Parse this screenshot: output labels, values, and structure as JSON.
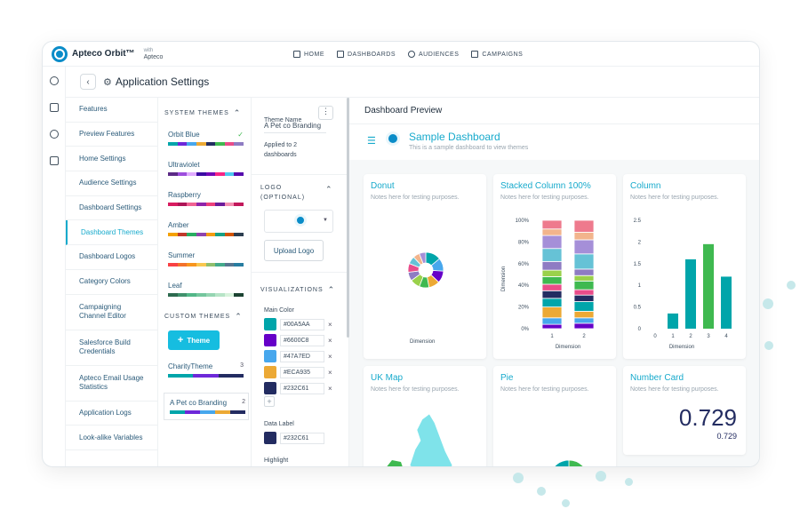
{
  "app": {
    "name": "Apteco Orbit™",
    "with_label": "with",
    "with_brand": "Apteco"
  },
  "nav": [
    {
      "label": "HOME",
      "icon": "home-icon"
    },
    {
      "label": "DASHBOARDS",
      "icon": "dashboards-icon"
    },
    {
      "label": "AUDIENCES",
      "icon": "audiences-icon"
    },
    {
      "label": "CAMPAIGNS",
      "icon": "campaigns-icon"
    }
  ],
  "header": {
    "title": "Application Settings"
  },
  "settings_menu": [
    {
      "label": "Features"
    },
    {
      "label": "Preview Features"
    },
    {
      "label": "Home Settings"
    },
    {
      "label": "Audience Settings"
    },
    {
      "label": "Dashboard Settings"
    },
    {
      "label": "Dashboard Themes"
    },
    {
      "label": "Dashboard Logos"
    },
    {
      "label": "Category Colors"
    },
    {
      "label": "Campaigning Channel Editor"
    },
    {
      "label": "Salesforce Build Credentials"
    },
    {
      "label": "Apteco Email Usage Statistics"
    },
    {
      "label": "Application Logs"
    },
    {
      "label": "Look-alike Variables"
    }
  ],
  "system_themes": {
    "heading": "SYSTEM THEMES",
    "items": [
      {
        "name": "Orbit Blue",
        "colors": [
          "#00A5AA",
          "#6D28D9",
          "#47A7ED",
          "#ECA935",
          "#232C61",
          "#3FB950",
          "#E94C89",
          "#8E7CC3"
        ]
      },
      {
        "name": "Ultraviolet",
        "colors": [
          "#5B2A86",
          "#9D4EDD",
          "#E0AAFF",
          "#3A0CA3",
          "#7209B7",
          "#F72585",
          "#4CC9F0",
          "#560BAD"
        ]
      },
      {
        "name": "Raspberry",
        "colors": [
          "#D81B60",
          "#AD1457",
          "#F06292",
          "#8E24AA",
          "#EC407A",
          "#6A1B9A",
          "#F48FB1",
          "#C2185B"
        ]
      },
      {
        "name": "Amber",
        "colors": [
          "#F4A100",
          "#C0392B",
          "#27AE60",
          "#8E44AD",
          "#F39C12",
          "#16A085",
          "#D35400",
          "#2C3E50"
        ]
      },
      {
        "name": "Summer",
        "colors": [
          "#F94144",
          "#F3722C",
          "#F8961E",
          "#F9C74F",
          "#90BE6D",
          "#43AA8B",
          "#577590",
          "#277DA1"
        ]
      },
      {
        "name": "Leaf",
        "colors": [
          "#2D6A4F",
          "#40916C",
          "#52B788",
          "#74C69D",
          "#95D5B2",
          "#B7E4C7",
          "#D8F3DC",
          "#1B4332"
        ]
      }
    ]
  },
  "custom_themes": {
    "heading": "CUSTOM THEMES",
    "add_label": "Theme",
    "items": [
      {
        "name": "CharityTheme",
        "count": "3",
        "colors": [
          "#00A5AA",
          "#00A5AA",
          "#6D28D9",
          "#6D28D9",
          "#232C61",
          "#232C61"
        ]
      },
      {
        "name": "A Pet co Branding",
        "count": "2",
        "colors": [
          "#00A5AA",
          "#6D28D9",
          "#47A7ED",
          "#ECA935",
          "#232C61"
        ]
      }
    ]
  },
  "theme_editor": {
    "name_label": "Theme Name",
    "name_value": "A Pet co Branding",
    "applied_to": "Applied to 2 dashboards",
    "logo_heading": "LOGO (OPTIONAL)",
    "upload_label": "Upload Logo",
    "visualizations_heading": "VISUALIZATIONS",
    "main_color_label": "Main Color",
    "main_colors": [
      "#00A5AA",
      "#6600C8",
      "#47A7ED",
      "#ECA935",
      "#232C61"
    ],
    "data_label_heading": "Data Label",
    "data_label_color": "#232C61",
    "highlight_label": "Highlight"
  },
  "preview": {
    "heading": "Dashboard Preview",
    "dashboard_title": "Sample Dashboard",
    "dashboard_subtitle": "This is a sample dashboard to view themes"
  },
  "cards": {
    "note": "Notes here for testing purposes.",
    "donut": {
      "title": "Donut",
      "xlabel": "Dimension"
    },
    "stacked": {
      "title": "Stacked Column 100%",
      "xlabel": "Dimension",
      "ylabel": "Dimension"
    },
    "column": {
      "title": "Column",
      "xlabel": "Dimension"
    },
    "ukmap": {
      "title": "UK Map"
    },
    "pie": {
      "title": "Pie"
    },
    "number": {
      "title": "Number Card",
      "value": "0.729",
      "sub": "0.729"
    }
  },
  "chart_data": [
    {
      "type": "bar",
      "title": "Column",
      "xlabel": "Dimension",
      "categories": [
        "0",
        "1",
        "2",
        "3",
        "4"
      ],
      "values": [
        0,
        0.35,
        1.6,
        1.95,
        1.2
      ],
      "ylim": [
        0,
        2.5
      ],
      "yticks": [
        "0",
        "0.5",
        "1",
        "1.5",
        "2",
        "2.5"
      ],
      "colors": [
        "#00A5AA",
        "#00A5AA",
        "#00A5AA",
        "#3FB950",
        "#00A5AA"
      ]
    },
    {
      "type": "bar",
      "title": "Stacked Column 100%",
      "xlabel": "Dimension",
      "ylabel": "Dimension",
      "categories": [
        "1",
        "2"
      ],
      "yticks": [
        "0%",
        "20%",
        "40%",
        "60%",
        "80%",
        "100%"
      ],
      "series": [
        {
          "color": "#6600C8",
          "values": [
            4,
            5
          ]
        },
        {
          "color": "#47A7ED",
          "values": [
            6,
            5
          ]
        },
        {
          "color": "#ECA935",
          "values": [
            10,
            6
          ]
        },
        {
          "color": "#00A5AA",
          "values": [
            8,
            9
          ]
        },
        {
          "color": "#232C61",
          "values": [
            7,
            6
          ]
        },
        {
          "color": "#E94C89",
          "values": [
            6,
            5
          ]
        },
        {
          "color": "#3FB950",
          "values": [
            7,
            8
          ]
        },
        {
          "color": "#9AD14B",
          "values": [
            6,
            5
          ]
        },
        {
          "color": "#8E7CC3",
          "values": [
            8,
            6
          ]
        },
        {
          "color": "#66C2D6",
          "values": [
            12,
            14
          ]
        },
        {
          "color": "#A58FD8",
          "values": [
            12,
            13
          ]
        },
        {
          "color": "#F2B48C",
          "values": [
            6,
            7
          ]
        },
        {
          "color": "#EE7A8D",
          "values": [
            8,
            11
          ]
        }
      ]
    },
    {
      "type": "pie",
      "title": "Donut",
      "values": [
        14,
        12,
        11,
        10,
        9,
        9,
        8,
        8,
        7,
        6,
        6
      ],
      "colors": [
        "#00A5AA",
        "#47A7ED",
        "#6600C8",
        "#ECA935",
        "#3FB950",
        "#9AD14B",
        "#8E7CC3",
        "#E94C89",
        "#66C2D6",
        "#F2B48C",
        "#A58FD8"
      ]
    },
    {
      "type": "pie",
      "title": "Pie",
      "values": [
        72,
        14,
        14
      ],
      "colors": [
        "#3FB950",
        "#6600C8",
        "#00A5AA"
      ]
    }
  ]
}
